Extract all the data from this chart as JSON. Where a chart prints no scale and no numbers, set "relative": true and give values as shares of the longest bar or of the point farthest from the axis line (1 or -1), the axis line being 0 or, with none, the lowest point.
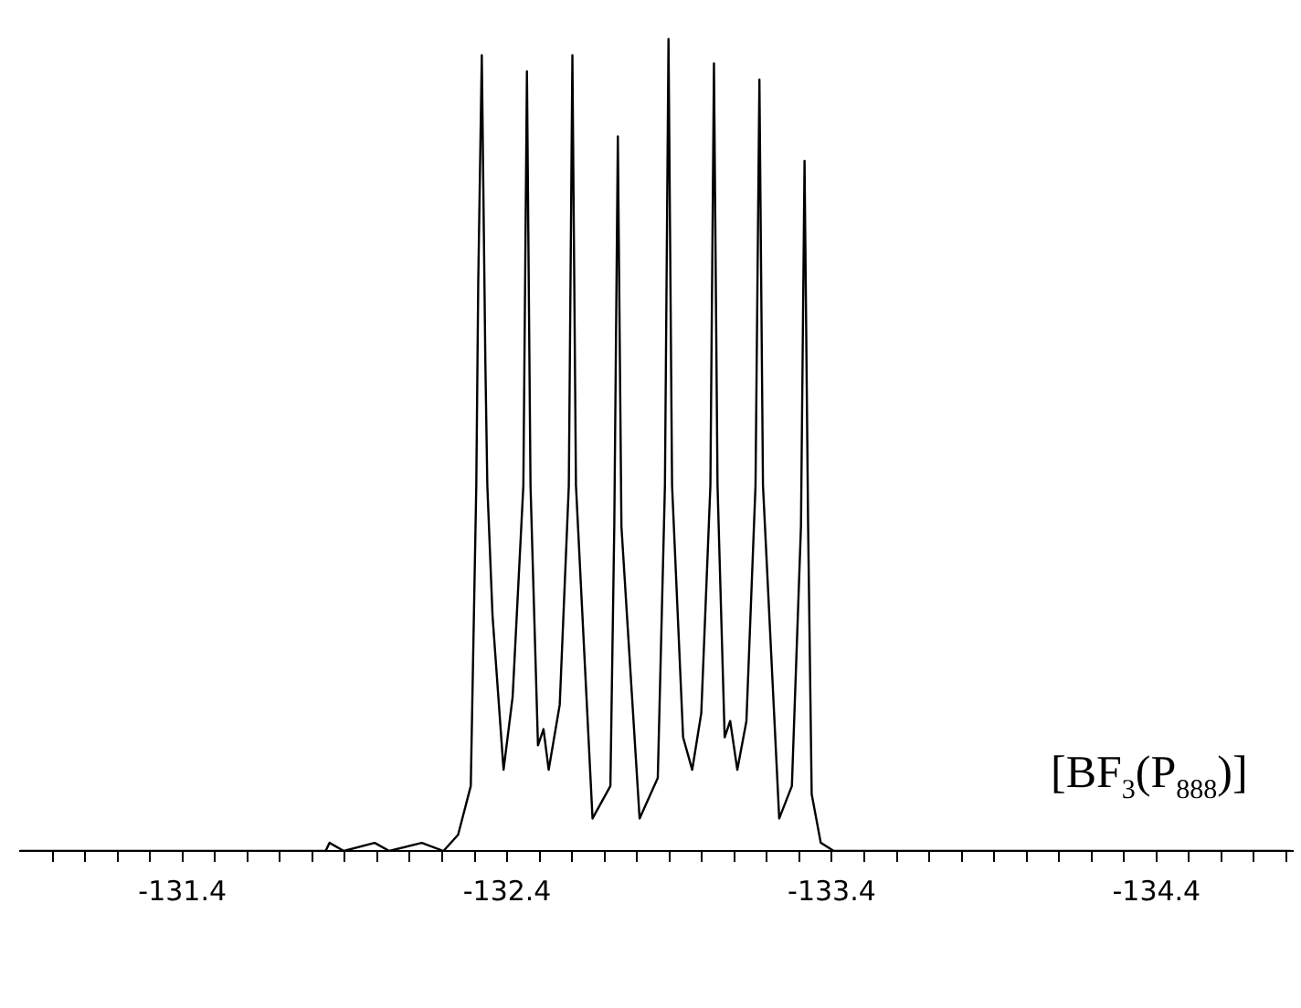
{
  "chart_data": {
    "type": "line",
    "relative": true,
    "x": [
      -130.9,
      -131.841,
      -131.853,
      -131.897,
      -131.992,
      -132.037,
      -132.137,
      -132.204,
      -132.249,
      -132.288,
      -132.305,
      -132.311,
      -132.322,
      -132.333,
      -132.339,
      -132.355,
      -132.389,
      -132.417,
      -132.45,
      -132.461,
      -132.472,
      -132.495,
      -132.512,
      -132.528,
      -132.562,
      -132.59,
      -132.601,
      -132.612,
      -132.663,
      -132.718,
      -132.73,
      -132.741,
      -132.752,
      -132.808,
      -132.864,
      -132.886,
      -132.897,
      -132.908,
      -132.942,
      -132.97,
      -132.998,
      -133.026,
      -133.037,
      -133.048,
      -133.07,
      -133.087,
      -133.109,
      -133.137,
      -133.165,
      -133.177,
      -133.188,
      -133.238,
      -133.277,
      -133.305,
      -133.316,
      -133.327,
      -133.338,
      -133.366,
      -133.406,
      -133.534,
      -134.813
    ],
    "series": [
      {
        "color": "#000000",
        "values": [
          0,
          0,
          0.01,
          0,
          0.01,
          0,
          0.01,
          0,
          0.02,
          0.08,
          0.45,
          0.7,
          0.98,
          0.6,
          0.45,
          0.29,
          0.1,
          0.19,
          0.45,
          0.96,
          0.45,
          0.13,
          0.15,
          0.1,
          0.18,
          0.45,
          0.98,
          0.45,
          0.04,
          0.08,
          0.4,
          0.88,
          0.4,
          0.04,
          0.09,
          0.45,
          1,
          0.45,
          0.14,
          0.1,
          0.17,
          0.45,
          0.97,
          0.45,
          0.14,
          0.16,
          0.1,
          0.16,
          0.45,
          0.95,
          0.45,
          0.04,
          0.08,
          0.4,
          0.85,
          0.4,
          0.07,
          0.01,
          0,
          0,
          0
        ]
      }
    ],
    "xlim": [
      -130.9,
      -134.82
    ],
    "xticks": [
      {
        "value": -131.0,
        "label": null
      },
      {
        "value": -131.1,
        "label": null
      },
      {
        "value": -131.2,
        "label": null
      },
      {
        "value": -131.3,
        "label": null
      },
      -131.4,
      {
        "value": -131.5,
        "label": null
      },
      {
        "value": -131.6,
        "label": null
      },
      {
        "value": -131.7,
        "label": null
      },
      {
        "value": -131.8,
        "label": null
      },
      {
        "value": -131.9,
        "label": null
      },
      {
        "value": -132.0,
        "label": null
      },
      {
        "value": -132.1,
        "label": null
      },
      {
        "value": -132.2,
        "label": null
      },
      {
        "value": -132.3,
        "label": null
      },
      -132.4,
      {
        "value": -132.5,
        "label": null
      },
      {
        "value": -132.6,
        "label": null
      },
      {
        "value": -132.7,
        "label": null
      },
      {
        "value": -132.8,
        "label": null
      },
      {
        "value": -132.9,
        "label": null
      },
      {
        "value": -133.0,
        "label": null
      },
      {
        "value": -133.1,
        "label": null
      },
      {
        "value": -133.2,
        "label": null
      },
      {
        "value": -133.3,
        "label": null
      },
      -133.4,
      {
        "value": -133.5,
        "label": null
      },
      {
        "value": -133.6,
        "label": null
      },
      {
        "value": -133.7,
        "label": null
      },
      {
        "value": -133.8,
        "label": null
      },
      {
        "value": -133.9,
        "label": null
      },
      {
        "value": -134.0,
        "label": null
      },
      {
        "value": -134.1,
        "label": null
      },
      {
        "value": -134.2,
        "label": null
      },
      {
        "value": -134.3,
        "label": null
      },
      -134.4,
      {
        "value": -134.5,
        "label": null
      },
      {
        "value": -134.6,
        "label": null
      },
      {
        "value": -134.7,
        "label": null
      },
      {
        "value": -134.8,
        "label": null
      }
    ],
    "tick_labels": "x",
    "annotations": [
      "[BF$_{3}$(P$_{888}$)]"
    ],
    "grid": false,
    "legend": false,
    "marker": "none",
    "line_style": "solid"
  }
}
